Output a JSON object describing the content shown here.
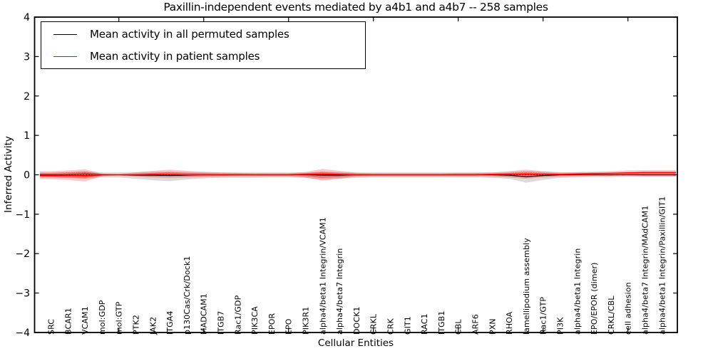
{
  "title": "Paxillin-independent events mediated by a4b1 and a4b7 -- 258 samples",
  "axes": {
    "x_label": "Cellular Entities",
    "y_label": "Inferred Activity"
  },
  "legend": {
    "position": "upper left",
    "entries": [
      {
        "label": "Mean activity in all permuted samples",
        "color": "#000000"
      },
      {
        "label": "Mean activity in patient samples",
        "color": "#ff0000"
      }
    ]
  },
  "colors": {
    "permuted_line": "#000000",
    "patient_line": "#ff0000",
    "permuted_band": "#b0b0b0",
    "patient_band": "#ff0000",
    "frame": "#000000"
  },
  "chart_data": {
    "type": "line",
    "title": "Paxillin-independent events mediated by a4b1 and a4b7 -- 258 samples",
    "xlabel": "Cellular Entities",
    "ylabel": "Inferred Activity",
    "ylim": [
      -4,
      4
    ],
    "yticks": [
      -4,
      -3,
      -2,
      -1,
      0,
      1,
      2,
      3,
      4
    ],
    "xtick_positions": [
      5,
      10,
      15,
      20,
      25,
      30,
      35
    ],
    "grid": false,
    "legend_position": "upper left",
    "zero_line": {
      "style": "dotted",
      "color": "#000000",
      "y": 0
    },
    "categories": [
      "SRC",
      "BCAR1",
      "VCAM1",
      "mol:GDP",
      "mol:GTP",
      "PTK2",
      "JAK2",
      "ITGA4",
      "p130Cas/Crk/Dock1",
      "MADCAM1",
      "ITGB7",
      "Rac1/GDP",
      "PIK3CA",
      "EPOR",
      "EPO",
      "PIK3R1",
      "alpha4/beta1 Integrin/VCAM1",
      "alpha4/beta7 Integrin",
      "DOCK1",
      "CRKL",
      "CRK",
      "GIT1",
      "RAC1",
      "ITGB1",
      "CBL",
      "ARF6",
      "PXN",
      "RHOA",
      "lamellipodium assembly",
      "Rac1/GTP",
      "PI3K",
      "alpha4/beta1 Integrin",
      "EPO/EPOR (dimer)",
      "CRKL/CBL",
      "cell adhesion",
      "alpha4/beta7 Integrin/MAdCAM1",
      "alpha4/beta1 Integrin/Paxillin/GIT1"
    ],
    "series": [
      {
        "name": "permuted-band",
        "type": "band",
        "color": "#b0b0b0",
        "opacity": 0.45,
        "upper": [
          0.05,
          0.07,
          0.09,
          0.06,
          0.06,
          0.07,
          0.08,
          0.08,
          0.07,
          0.06,
          0.06,
          0.06,
          0.06,
          0.06,
          0.06,
          0.06,
          0.07,
          0.07,
          0.06,
          0.06,
          0.06,
          0.06,
          0.06,
          0.06,
          0.06,
          0.06,
          0.06,
          0.07,
          0.1,
          0.08,
          0.06,
          0.06,
          0.06,
          0.05,
          0.05,
          0.05,
          0.05
        ],
        "lower": [
          -0.06,
          -0.08,
          -0.1,
          -0.07,
          -0.07,
          -0.1,
          -0.14,
          -0.16,
          -0.12,
          -0.09,
          -0.08,
          -0.08,
          -0.08,
          -0.07,
          -0.07,
          -0.08,
          -0.12,
          -0.1,
          -0.08,
          -0.07,
          -0.07,
          -0.07,
          -0.07,
          -0.07,
          -0.07,
          -0.07,
          -0.08,
          -0.1,
          -0.2,
          -0.13,
          -0.08,
          -0.07,
          -0.06,
          -0.06,
          -0.05,
          -0.05,
          -0.05
        ]
      },
      {
        "name": "permuted-dark-core",
        "type": "band",
        "color": "#3a3a3a",
        "opacity": 0.5,
        "upper": [
          0,
          0.02,
          0.05,
          0.02,
          0,
          0,
          0,
          0,
          0,
          0,
          0,
          0,
          0,
          0,
          0,
          0,
          0,
          0,
          0,
          0,
          0,
          0,
          0,
          0,
          0,
          0,
          0,
          0,
          0,
          0,
          0,
          0,
          0,
          0,
          0,
          0,
          0
        ],
        "lower": [
          0,
          -0.02,
          -0.05,
          -0.02,
          0,
          0,
          0,
          0,
          0,
          0,
          0,
          0,
          0,
          0,
          0,
          0,
          0,
          0,
          0,
          0,
          0,
          0,
          0,
          0,
          0,
          0,
          0,
          0,
          0,
          0,
          0,
          0,
          0,
          0,
          0,
          0,
          0
        ]
      },
      {
        "name": "patient-band-outer",
        "type": "band",
        "color": "#ff0000",
        "opacity": 0.22,
        "upper": [
          0.09,
          0.11,
          0.14,
          0.03,
          0.02,
          0.06,
          0.1,
          0.13,
          0.1,
          0.08,
          0.06,
          0.05,
          0.04,
          0.04,
          0.04,
          0.07,
          0.15,
          0.1,
          0.05,
          0.04,
          0.04,
          0.04,
          0.04,
          0.04,
          0.05,
          0.05,
          0.06,
          0.09,
          0.13,
          0.09,
          0.06,
          0.07,
          0.08,
          0.09,
          0.11,
          0.12,
          0.12
        ],
        "lower": [
          -0.11,
          -0.13,
          -0.17,
          -0.04,
          -0.02,
          -0.05,
          -0.07,
          -0.08,
          -0.07,
          -0.06,
          -0.05,
          -0.04,
          -0.04,
          -0.04,
          -0.04,
          -0.07,
          -0.15,
          -0.1,
          -0.05,
          -0.04,
          -0.04,
          -0.04,
          -0.04,
          -0.04,
          -0.04,
          -0.04,
          -0.05,
          -0.07,
          -0.1,
          -0.07,
          -0.05,
          -0.04,
          -0.03,
          -0.03,
          -0.03,
          -0.04,
          -0.04
        ]
      },
      {
        "name": "patient-band-inner",
        "type": "band",
        "color": "#ff0000",
        "opacity": 0.33,
        "upper": [
          0.05,
          0.06,
          0.08,
          0.02,
          0.01,
          0.03,
          0.05,
          0.07,
          0.05,
          0.04,
          0.03,
          0.03,
          0.02,
          0.02,
          0.02,
          0.04,
          0.08,
          0.05,
          0.03,
          0.02,
          0.02,
          0.02,
          0.02,
          0.02,
          0.03,
          0.03,
          0.03,
          0.05,
          0.07,
          0.05,
          0.03,
          0.04,
          0.05,
          0.05,
          0.06,
          0.07,
          0.07
        ],
        "lower": [
          -0.06,
          -0.07,
          -0.09,
          -0.02,
          -0.01,
          -0.03,
          -0.04,
          -0.04,
          -0.04,
          -0.03,
          -0.03,
          -0.02,
          -0.02,
          -0.02,
          -0.02,
          -0.04,
          -0.08,
          -0.06,
          -0.03,
          -0.02,
          -0.02,
          -0.02,
          -0.02,
          -0.02,
          -0.02,
          -0.02,
          -0.03,
          -0.04,
          -0.06,
          -0.04,
          -0.03,
          -0.02,
          -0.02,
          -0.02,
          -0.01,
          -0.02,
          -0.02
        ]
      },
      {
        "name": "Mean activity in all permuted samples",
        "type": "line",
        "color": "#000000",
        "width": 1.1,
        "values": [
          0,
          -0.01,
          -0.02,
          0,
          0,
          -0.01,
          -0.01,
          -0.02,
          -0.01,
          0,
          0,
          0,
          0,
          0,
          0,
          0,
          -0.01,
          -0.01,
          0,
          0,
          0,
          0,
          0,
          0,
          0,
          0,
          0,
          -0.01,
          -0.05,
          -0.02,
          0,
          0,
          0,
          0,
          0,
          0,
          0
        ]
      },
      {
        "name": "Mean activity in patient samples",
        "type": "line",
        "color": "#ff0000",
        "width": 1.4,
        "values": [
          -0.02,
          -0.02,
          -0.02,
          0,
          0,
          0,
          0.01,
          0.01,
          0,
          0,
          0,
          0,
          0,
          0,
          0,
          0.01,
          0.02,
          0.01,
          0,
          0,
          0,
          0,
          0,
          0,
          0,
          0,
          0.01,
          0.01,
          0.02,
          0.01,
          0.01,
          0.02,
          0.03,
          0.04,
          0.05,
          0.06,
          0.06
        ]
      }
    ]
  }
}
